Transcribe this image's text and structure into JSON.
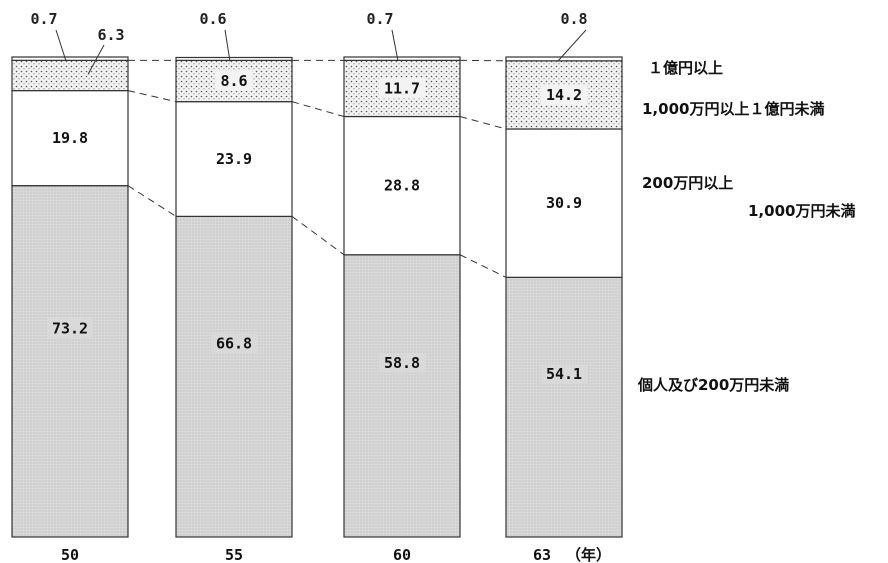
{
  "chart_data": {
    "type": "bar",
    "stacked": true,
    "categories": [
      "50",
      "55",
      "60",
      "63"
    ],
    "x_unit": "（年）",
    "series": [
      {
        "name": "個人及び200万円未満",
        "values": [
          73.2,
          66.8,
          58.8,
          54.1
        ],
        "labels": [
          "73.2",
          "66.8",
          "58.8",
          "54.1"
        ]
      },
      {
        "name": "200万円以上 1,000万円未満",
        "values": [
          19.8,
          23.9,
          28.8,
          30.9
        ],
        "labels": [
          "19.8",
          "23.9",
          "28.8",
          "30.9"
        ]
      },
      {
        "name": "1,000万円以上１億円未満",
        "values": [
          6.3,
          8.6,
          11.7,
          14.2
        ],
        "labels": [
          "6.3",
          "8.6",
          "11.7",
          "14.2"
        ]
      },
      {
        "name": "１億円以上",
        "values": [
          0.7,
          0.6,
          0.7,
          0.8
        ],
        "labels": [
          "0.7",
          "0.6",
          "0.7",
          "0.8"
        ]
      }
    ],
    "legend": [
      {
        "lines": [
          "１億円以上"
        ]
      },
      {
        "lines": [
          "1,000万円以上１億円未満"
        ]
      },
      {
        "lines": [
          "200万円以上",
          "1,000万円未満"
        ]
      },
      {
        "lines": [
          "個人及び200万円未満"
        ]
      }
    ],
    "colors": {
      "base": "#d6d6d6",
      "middle": "#ffffff",
      "dotted": "#f3f3f3",
      "top": "#ffffff",
      "line": "#333333"
    }
  }
}
